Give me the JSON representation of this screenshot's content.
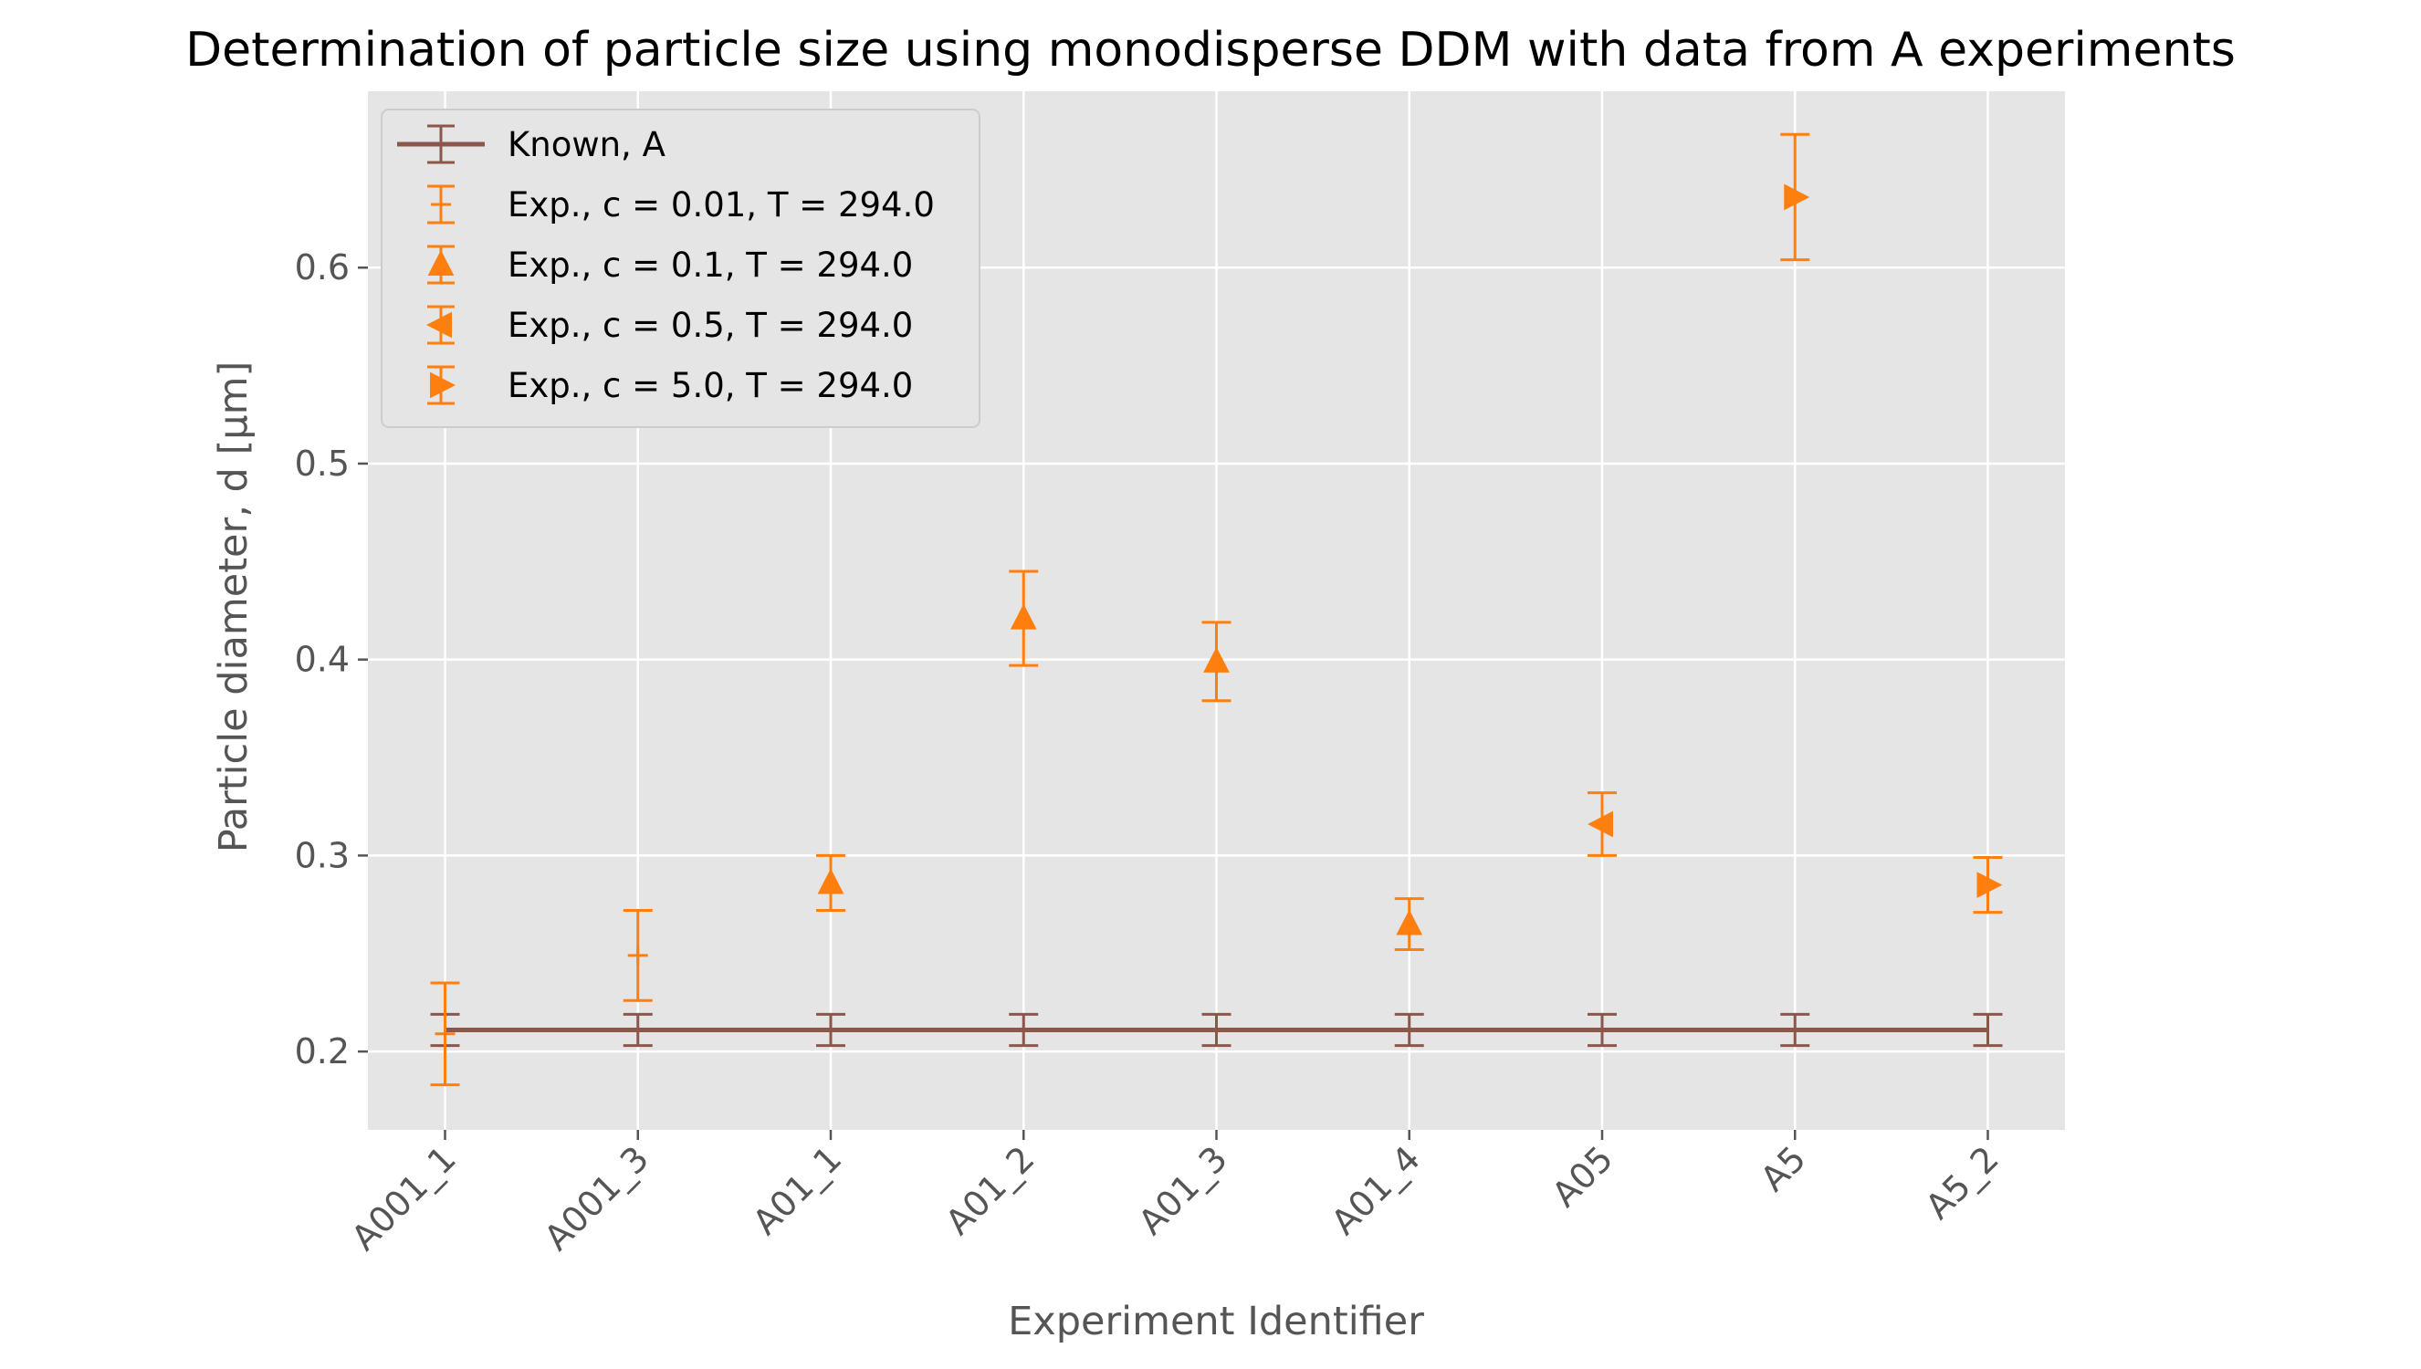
{
  "chart_data": {
    "type": "scatter",
    "title": "Determination of particle size using monodisperse DDM with data from A experiments",
    "xlabel": "Experiment Identifier",
    "ylabel": "Particle diameter, d [µm]",
    "categories": [
      "A001_1",
      "A001_3",
      "A01_1",
      "A01_2",
      "A01_3",
      "A01_4",
      "A05",
      "A5",
      "A5_2"
    ],
    "ylim": [
      0.16,
      0.69
    ],
    "yticks": [
      0.2,
      0.3,
      0.4,
      0.5,
      0.6
    ],
    "ytick_labels": [
      "0.2",
      "0.3",
      "0.4",
      "0.5",
      "0.6"
    ],
    "grid": true,
    "legend_position": "upper-left",
    "series": [
      {
        "name": "Known, A",
        "marker": "line",
        "color": "#8c564b",
        "points": [
          {
            "x": "A001_1",
            "y": 0.211,
            "err": 0.008
          },
          {
            "x": "A001_3",
            "y": 0.211,
            "err": 0.008
          },
          {
            "x": "A01_1",
            "y": 0.211,
            "err": 0.008
          },
          {
            "x": "A01_2",
            "y": 0.211,
            "err": 0.008
          },
          {
            "x": "A01_3",
            "y": 0.211,
            "err": 0.008
          },
          {
            "x": "A01_4",
            "y": 0.211,
            "err": 0.008
          },
          {
            "x": "A05",
            "y": 0.211,
            "err": 0.008
          },
          {
            "x": "A5",
            "y": 0.211,
            "err": 0.008
          },
          {
            "x": "A5_2",
            "y": 0.211,
            "err": 0.008
          }
        ]
      },
      {
        "name": "Exp., c = 0.01, T = 294.0",
        "marker": "plus",
        "color": "#ff7f0e",
        "points": [
          {
            "x": "A001_1",
            "y": 0.209,
            "err": 0.026
          },
          {
            "x": "A001_3",
            "y": 0.249,
            "err": 0.023
          }
        ]
      },
      {
        "name": "Exp., c = 0.1, T = 294.0",
        "marker": "triangle-up",
        "color": "#ff7f0e",
        "points": [
          {
            "x": "A01_1",
            "y": 0.286,
            "err": 0.014
          },
          {
            "x": "A01_2",
            "y": 0.421,
            "err": 0.024
          },
          {
            "x": "A01_3",
            "y": 0.399,
            "err": 0.02
          },
          {
            "x": "A01_4",
            "y": 0.265,
            "err": 0.013
          }
        ]
      },
      {
        "name": "Exp., c = 0.5, T = 294.0",
        "marker": "triangle-left",
        "color": "#ff7f0e",
        "points": [
          {
            "x": "A05",
            "y": 0.316,
            "err": 0.016
          }
        ]
      },
      {
        "name": "Exp., c = 5.0, T = 294.0",
        "marker": "triangle-right",
        "color": "#ff7f0e",
        "points": [
          {
            "x": "A5",
            "y": 0.636,
            "err": 0.032
          },
          {
            "x": "A5_2",
            "y": 0.285,
            "err": 0.014
          }
        ]
      }
    ],
    "colors": {
      "plot_background": "#e5e5e5",
      "grid": "#ffffff",
      "tick_label": "#555555",
      "title": "#000000"
    }
  }
}
